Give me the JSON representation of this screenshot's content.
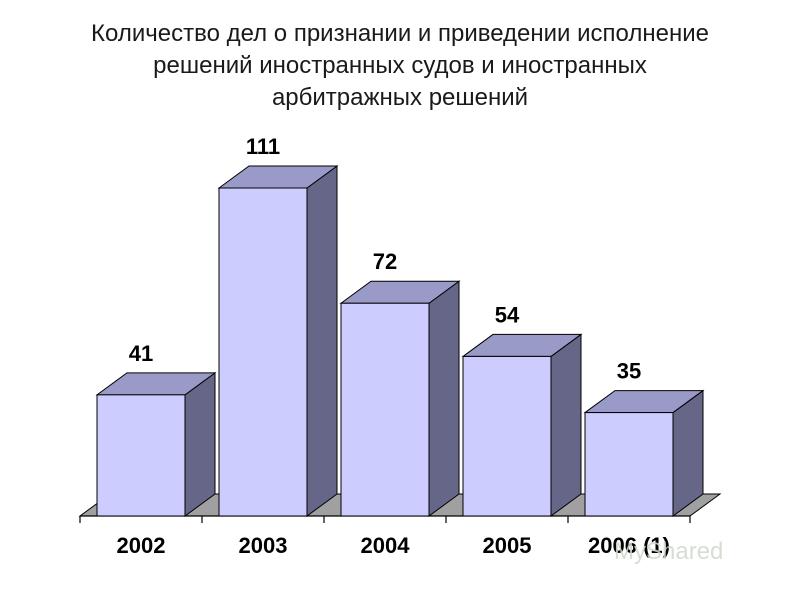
{
  "chart_data": {
    "type": "bar",
    "title_lines": [
      "Количество дел о признании и приведении исполнение",
      "решений иностранных судов и иностранных",
      "арбитражных решений"
    ],
    "categories": [
      "2002",
      "2003",
      "2004",
      "2005",
      "2006 (1)"
    ],
    "values": [
      41,
      111,
      72,
      54,
      35
    ],
    "data_labels": [
      "41",
      "111",
      "72",
      "54",
      "35"
    ],
    "xlabel": "",
    "ylabel": "",
    "ylim": [
      0,
      111
    ],
    "grid": false,
    "legend": "none",
    "style_3d": true
  },
  "colors": {
    "bar_front": "#ccccff",
    "bar_top": "#9a9ac8",
    "bar_side": "#666688",
    "floor": "#a0a0a0",
    "text": "#000000"
  },
  "watermark": {
    "text": "MyShared"
  }
}
